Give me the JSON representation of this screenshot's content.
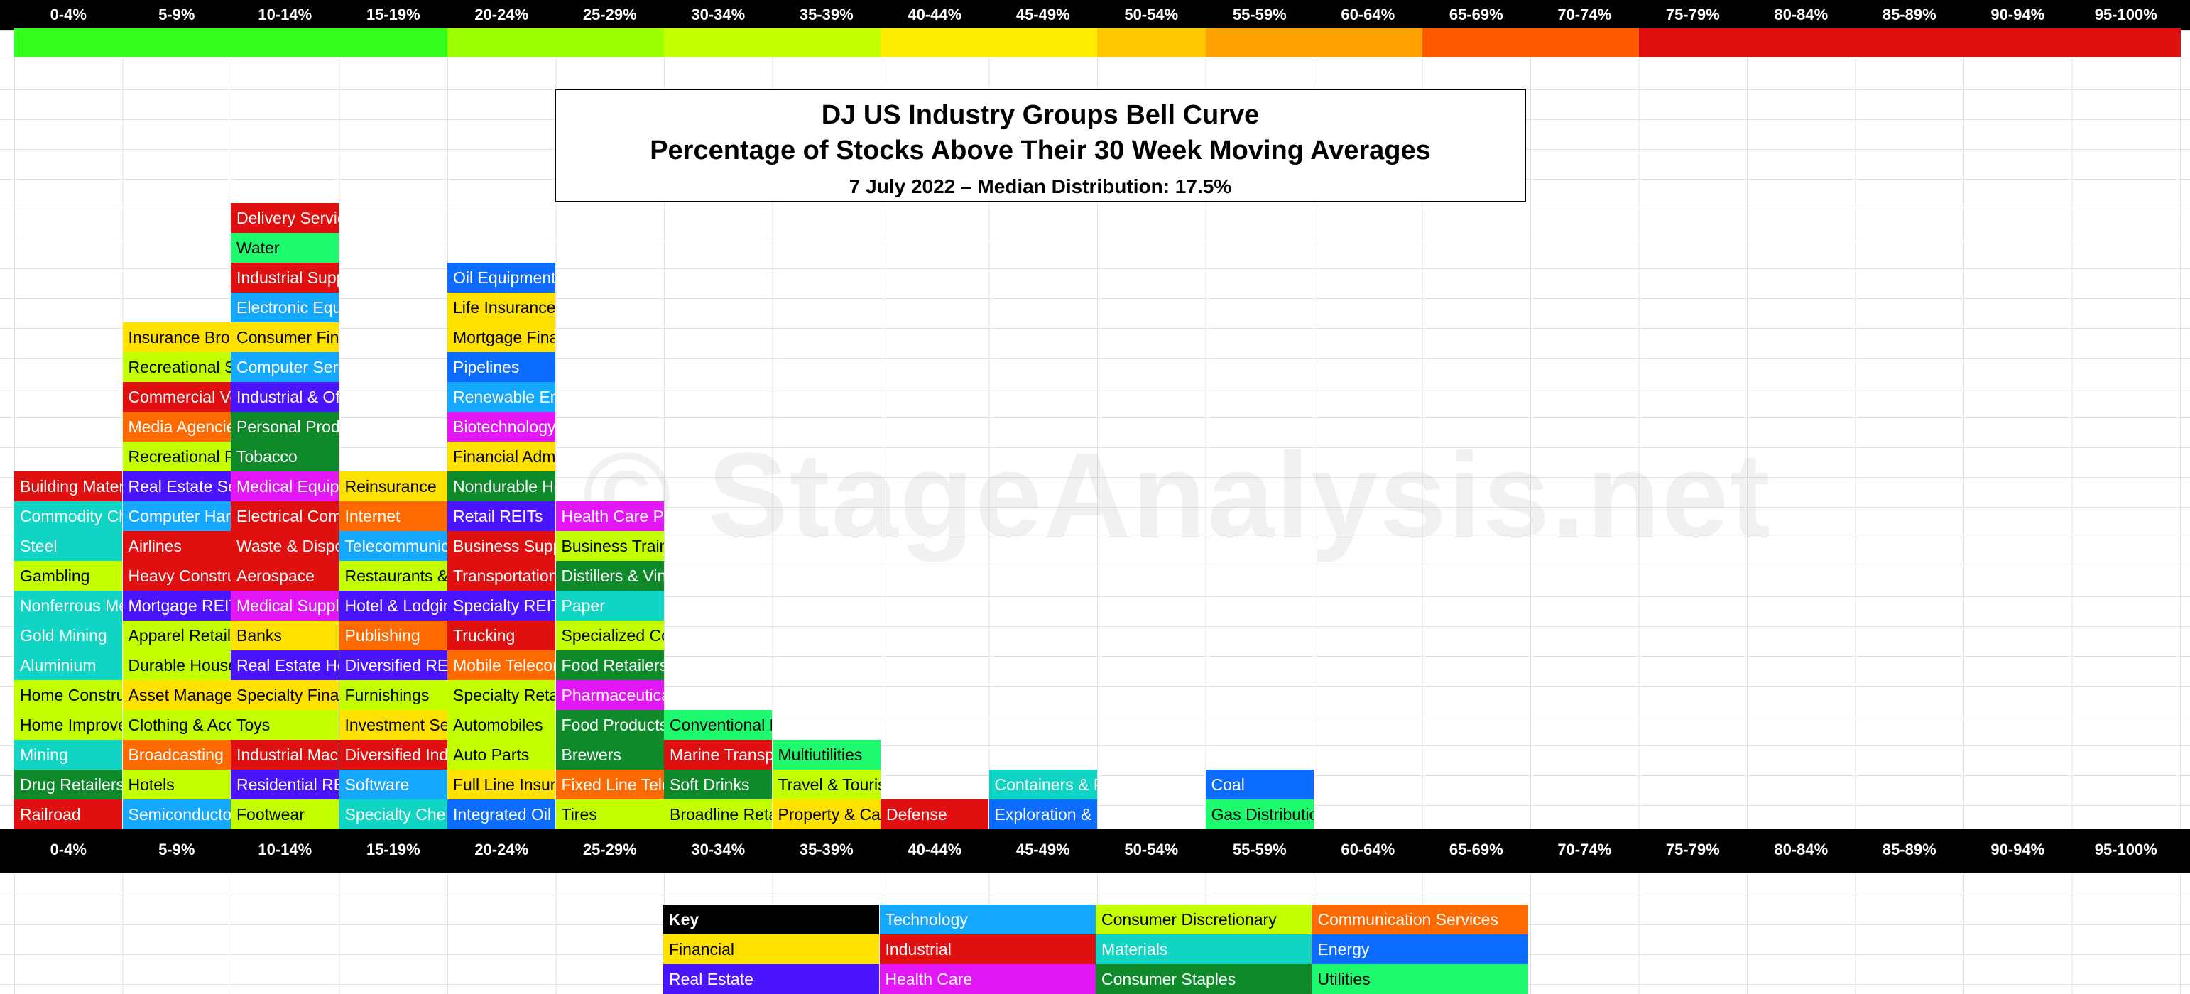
{
  "chart_data": {
    "type": "table",
    "title": "DJ US Industry Groups Bell Curve",
    "subtitle": "Percentage of Stocks Above Their 30 Week Moving Averages",
    "date_line": "7 July 2022 – Median Distribution: 17.5%",
    "watermark": "© StageAnalysis.net",
    "ranges": [
      "0-4%",
      "5-9%",
      "10-14%",
      "15-19%",
      "20-24%",
      "25-29%",
      "30-34%",
      "35-39%",
      "40-44%",
      "45-49%",
      "50-54%",
      "55-59%",
      "60-64%",
      "65-69%",
      "70-74%",
      "75-79%",
      "80-84%",
      "85-89%",
      "90-94%",
      "95-100%"
    ],
    "heat_colors": [
      "#34ff1e",
      "#34ff1e",
      "#34ff1e",
      "#34ff1e",
      "#9cff00",
      "#9cff00",
      "#c4ff00",
      "#c4ff00",
      "#ffee00",
      "#ffee00",
      "#ffc800",
      "#ffa100",
      "#ffa100",
      "#ff5a00",
      "#ff5a00",
      "#e01010",
      "#e01010",
      "#e01010",
      "#e01010",
      "#e01010"
    ],
    "sector_colors": {
      "Financial": "#ffe100",
      "Industrial": "#e01010",
      "Real Estate": "#4b14ff",
      "Technology": "#14a8ff",
      "Health Care": "#e316f5",
      "Consumer Discretionary": "#c4ff00",
      "Materials": "#10d4c4",
      "Consumer Staples": "#0e8a2a",
      "Communication Services": "#ff6a00",
      "Energy": "#0b6cff",
      "Utilities": "#1efa6e"
    },
    "text_colors": {
      "Financial": "#000000",
      "Industrial": "#ffffff",
      "Real Estate": "#ffffff",
      "Technology": "#ffffff",
      "Health Care": "#ffffff",
      "Consumer Discretionary": "#000000",
      "Materials": "#ffffff",
      "Consumer Staples": "#ffffff",
      "Communication Services": "#ffffff",
      "Energy": "#ffffff",
      "Utilities": "#000000"
    },
    "columns": [
      {
        "range": "0-4%",
        "groups": [
          {
            "name": "Railroad",
            "sector": "Industrial"
          },
          {
            "name": "Drug Retailers",
            "sector": "Consumer Staples"
          },
          {
            "name": "Mining",
            "sector": "Materials"
          },
          {
            "name": "Home Improvement",
            "sector": "Consumer Discretionary"
          },
          {
            "name": "Home Construction",
            "sector": "Consumer Discretionary"
          },
          {
            "name": "Aluminium",
            "sector": "Materials"
          },
          {
            "name": "Gold Mining",
            "sector": "Materials"
          },
          {
            "name": "Nonferrous Metals",
            "sector": "Materials"
          },
          {
            "name": "Gambling",
            "sector": "Consumer Discretionary"
          },
          {
            "name": "Steel",
            "sector": "Materials"
          },
          {
            "name": "Commodity Chemicals",
            "sector": "Materials"
          },
          {
            "name": "Building Materials",
            "sector": "Industrial"
          }
        ]
      },
      {
        "range": "5-9%",
        "groups": [
          {
            "name": "Semiconductors",
            "sector": "Technology"
          },
          {
            "name": "Hotels",
            "sector": "Consumer Discretionary"
          },
          {
            "name": "Broadcasting",
            "sector": "Communication Services"
          },
          {
            "name": "Clothing & Accessories",
            "sector": "Consumer Discretionary"
          },
          {
            "name": "Asset Managers",
            "sector": "Financial"
          },
          {
            "name": "Durable Household",
            "sector": "Consumer Discretionary"
          },
          {
            "name": "Apparel Retailers",
            "sector": "Consumer Discretionary"
          },
          {
            "name": "Mortgage REITs",
            "sector": "Real Estate"
          },
          {
            "name": "Heavy Construction",
            "sector": "Industrial"
          },
          {
            "name": "Airlines",
            "sector": "Industrial"
          },
          {
            "name": "Computer Hardware",
            "sector": "Technology"
          },
          {
            "name": "Real Estate Services",
            "sector": "Real Estate"
          },
          {
            "name": "Recreational Products",
            "sector": "Consumer Discretionary"
          },
          {
            "name": "Media Agencies",
            "sector": "Communication Services"
          },
          {
            "name": "Commercial Vehicles",
            "sector": "Industrial"
          },
          {
            "name": "Recreational Services",
            "sector": "Consumer Discretionary"
          },
          {
            "name": "Insurance Brokers",
            "sector": "Financial"
          }
        ]
      },
      {
        "range": "10-14%",
        "groups": [
          {
            "name": "Footwear",
            "sector": "Consumer Discretionary"
          },
          {
            "name": "Residential REITs",
            "sector": "Real Estate"
          },
          {
            "name": "Industrial Machinery",
            "sector": "Industrial"
          },
          {
            "name": "Toys",
            "sector": "Consumer Discretionary"
          },
          {
            "name": "Specialty Finance",
            "sector": "Financial"
          },
          {
            "name": "Real Estate Holding",
            "sector": "Real Estate"
          },
          {
            "name": "Banks",
            "sector": "Financial"
          },
          {
            "name": "Medical Supplies",
            "sector": "Health Care"
          },
          {
            "name": "Aerospace",
            "sector": "Industrial"
          },
          {
            "name": "Waste & Disposal",
            "sector": "Industrial"
          },
          {
            "name": "Electrical Components",
            "sector": "Industrial"
          },
          {
            "name": "Medical Equipment",
            "sector": "Health Care"
          },
          {
            "name": "Tobacco",
            "sector": "Consumer Staples"
          },
          {
            "name": "Personal Products",
            "sector": "Consumer Staples"
          },
          {
            "name": "Industrial & Office",
            "sector": "Real Estate"
          },
          {
            "name": "Computer Services",
            "sector": "Technology"
          },
          {
            "name": "Consumer Finance",
            "sector": "Financial"
          },
          {
            "name": "Electronic Equipment",
            "sector": "Technology"
          },
          {
            "name": "Industrial Suppliers",
            "sector": "Industrial"
          },
          {
            "name": "Water",
            "sector": "Utilities"
          },
          {
            "name": "Delivery Services",
            "sector": "Industrial"
          }
        ]
      },
      {
        "range": "15-19%",
        "groups": [
          {
            "name": "Specialty Chemicals",
            "sector": "Materials"
          },
          {
            "name": "Software",
            "sector": "Technology"
          },
          {
            "name": "Diversified Industrials",
            "sector": "Industrial"
          },
          {
            "name": "Investment Services",
            "sector": "Financial"
          },
          {
            "name": "Furnishings",
            "sector": "Consumer Discretionary"
          },
          {
            "name": "Diversified REITs",
            "sector": "Real Estate"
          },
          {
            "name": "Publishing",
            "sector": "Communication Services"
          },
          {
            "name": "Hotel & Lodging REITs",
            "sector": "Real Estate"
          },
          {
            "name": "Restaurants & Bars",
            "sector": "Consumer Discretionary"
          },
          {
            "name": "Telecommunications Equipment",
            "sector": "Technology"
          },
          {
            "name": "Internet",
            "sector": "Communication Services"
          },
          {
            "name": "Reinsurance",
            "sector": "Financial"
          }
        ]
      },
      {
        "range": "20-24%",
        "groups": [
          {
            "name": "Integrated Oil & Gas",
            "sector": "Energy"
          },
          {
            "name": "Full Line Insurance",
            "sector": "Financial"
          },
          {
            "name": "Auto Parts",
            "sector": "Consumer Discretionary"
          },
          {
            "name": "Automobiles",
            "sector": "Consumer Discretionary"
          },
          {
            "name": "Specialty Retailers",
            "sector": "Consumer Discretionary"
          },
          {
            "name": "Mobile Telecommunications",
            "sector": "Communication Services"
          },
          {
            "name": "Trucking",
            "sector": "Industrial"
          },
          {
            "name": "Specialty REITs",
            "sector": "Real Estate"
          },
          {
            "name": "Transportation Services",
            "sector": "Industrial"
          },
          {
            "name": "Business Supplies",
            "sector": "Industrial"
          },
          {
            "name": "Retail REITs",
            "sector": "Real Estate"
          },
          {
            "name": "Nondurable Household",
            "sector": "Consumer Staples"
          },
          {
            "name": "Financial Administration",
            "sector": "Financial"
          },
          {
            "name": "Biotechnology",
            "sector": "Health Care"
          },
          {
            "name": "Renewable Energy",
            "sector": "Technology"
          },
          {
            "name": "Pipelines",
            "sector": "Energy"
          },
          {
            "name": "Mortgage Finance",
            "sector": "Financial"
          },
          {
            "name": "Life Insurance",
            "sector": "Financial"
          },
          {
            "name": "Oil Equipment",
            "sector": "Energy"
          }
        ]
      },
      {
        "range": "25-29%",
        "groups": [
          {
            "name": "Tires",
            "sector": "Consumer Discretionary"
          },
          {
            "name": "Fixed Line Telecommunications",
            "sector": "Communication Services"
          },
          {
            "name": "Brewers",
            "sector": "Consumer Staples"
          },
          {
            "name": "Food Products",
            "sector": "Consumer Staples"
          },
          {
            "name": "Pharmaceuticals",
            "sector": "Health Care"
          },
          {
            "name": "Food Retailers",
            "sector": "Consumer Staples"
          },
          {
            "name": "Specialized Consumer Services",
            "sector": "Consumer Discretionary"
          },
          {
            "name": "Paper",
            "sector": "Materials"
          },
          {
            "name": "Distillers & Vintners",
            "sector": "Consumer Staples"
          },
          {
            "name": "Business Training",
            "sector": "Consumer Discretionary"
          },
          {
            "name": "Health Care Providers",
            "sector": "Health Care"
          }
        ]
      },
      {
        "range": "30-34%",
        "groups": [
          {
            "name": "Broadline Retailers",
            "sector": "Consumer Discretionary"
          },
          {
            "name": "Soft Drinks",
            "sector": "Consumer Staples"
          },
          {
            "name": "Marine Transportation",
            "sector": "Industrial"
          },
          {
            "name": "Conventional Electricity",
            "sector": "Utilities"
          }
        ]
      },
      {
        "range": "35-39%",
        "groups": [
          {
            "name": "Property & Casualty Insurance",
            "sector": "Financial"
          },
          {
            "name": "Travel & Tourism",
            "sector": "Consumer Discretionary"
          },
          {
            "name": "Multiutilities",
            "sector": "Utilities"
          }
        ]
      },
      {
        "range": "40-44%",
        "groups": [
          {
            "name": "Defense",
            "sector": "Industrial"
          }
        ]
      },
      {
        "range": "45-49%",
        "groups": [
          {
            "name": "Exploration & Production",
            "sector": "Energy"
          },
          {
            "name": "Containers & Packaging",
            "sector": "Materials"
          }
        ]
      },
      {
        "range": "50-54%",
        "groups": []
      },
      {
        "range": "55-59%",
        "groups": [
          {
            "name": "Gas Distribution",
            "sector": "Utilities"
          },
          {
            "name": "Coal",
            "sector": "Energy"
          }
        ]
      },
      {
        "range": "60-64%",
        "groups": []
      },
      {
        "range": "65-69%",
        "groups": []
      },
      {
        "range": "70-74%",
        "groups": []
      },
      {
        "range": "75-79%",
        "groups": []
      },
      {
        "range": "80-84%",
        "groups": []
      },
      {
        "range": "85-89%",
        "groups": []
      },
      {
        "range": "90-94%",
        "groups": []
      },
      {
        "range": "95-100%",
        "groups": []
      }
    ],
    "key": {
      "header": "Key",
      "items": [
        "Technology",
        "Consumer Discretionary",
        "Communication Services",
        "Financial",
        "Industrial",
        "Materials",
        "Energy",
        "Real Estate",
        "Health Care",
        "Consumer Staples",
        "Utilities"
      ]
    }
  }
}
